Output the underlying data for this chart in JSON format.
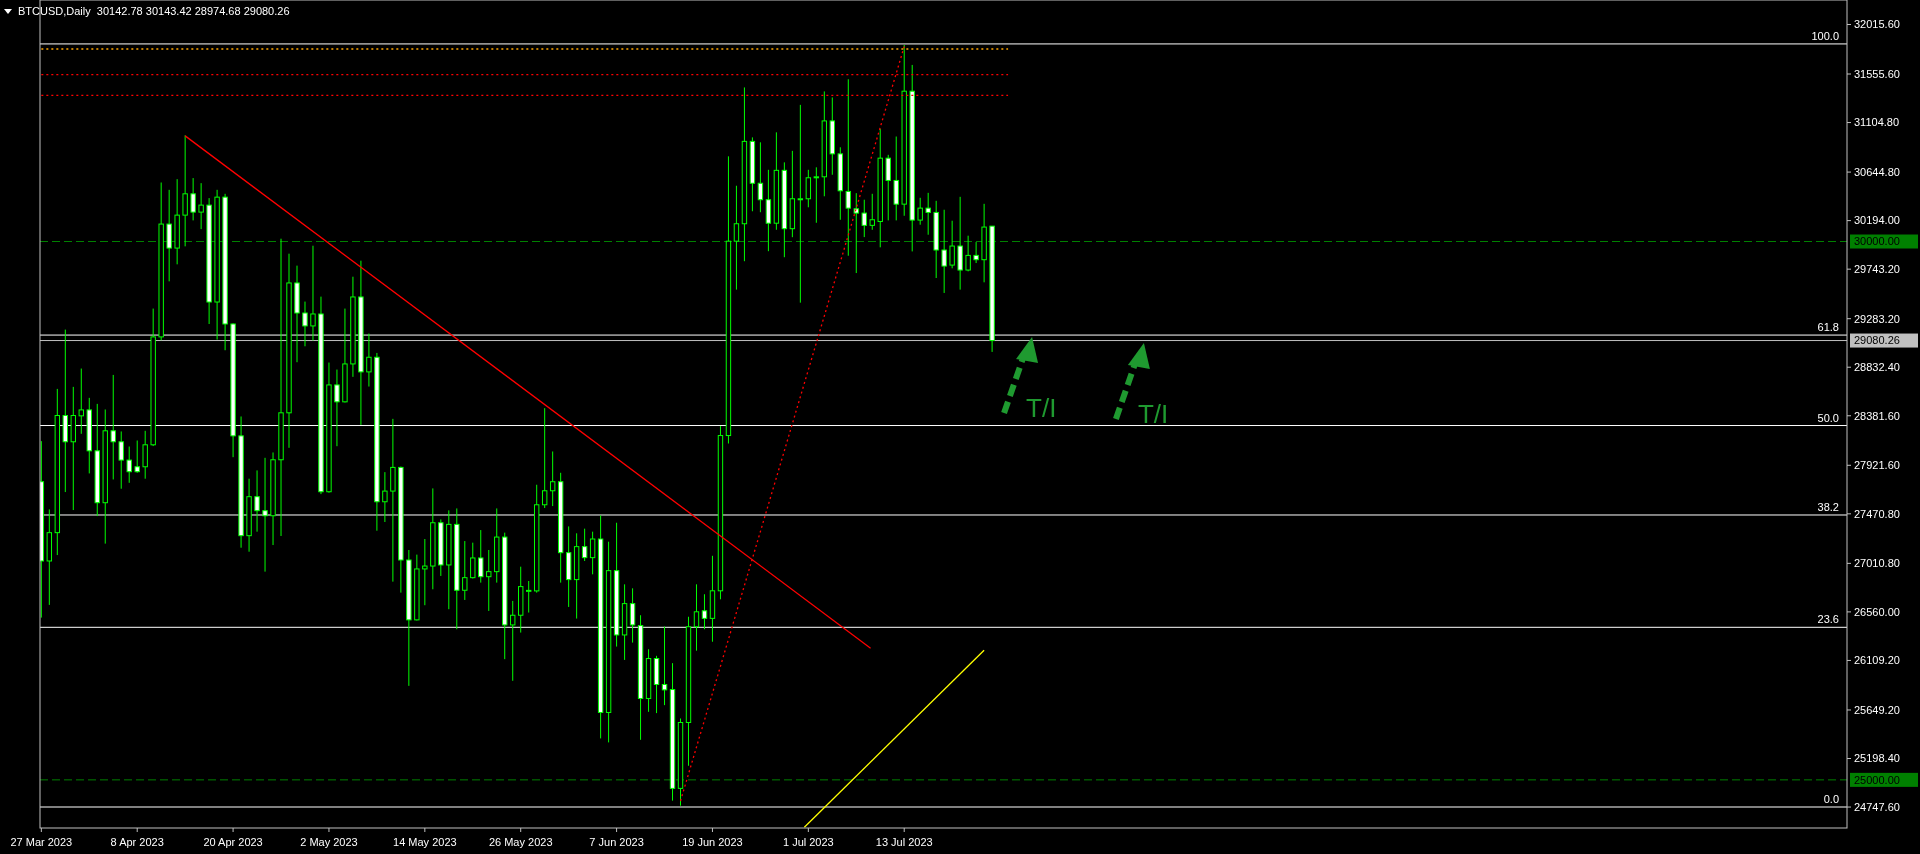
{
  "chart_data": {
    "type": "candlestick",
    "title": "BTCUSD,Daily  30142.78 30143.42 28974.68 29080.26",
    "xlim": [
      "2023-03-26T20:00",
      "2023-11-08"
    ],
    "xticks": [
      {
        "value": "2023-03-27",
        "label": "27 Mar 2023"
      },
      {
        "value": "2023-04-08",
        "label": "8 Apr 2023"
      },
      {
        "value": "2023-04-20",
        "label": "20 Apr 2023"
      },
      {
        "value": "2023-05-02",
        "label": "2 May 2023"
      },
      {
        "value": "2023-05-14",
        "label": "14 May 2023"
      },
      {
        "value": "2023-05-26",
        "label": "26 May 2023"
      },
      {
        "value": "2023-06-07",
        "label": "7 Jun 2023"
      },
      {
        "value": "2023-06-19",
        "label": "19 Jun 2023"
      },
      {
        "value": "2023-07-01",
        "label": "1 Jul 2023"
      },
      {
        "value": "2023-07-13",
        "label": "13 Jul 2023"
      }
    ],
    "ylim": [
      24553,
      32243
    ],
    "yticks": [
      {
        "value": 24747.6,
        "label": "24747.60"
      },
      {
        "value": 25198.4,
        "label": "25198.40"
      },
      {
        "value": 25649.2,
        "label": "25649.20"
      },
      {
        "value": 26109.2,
        "label": "26109.20"
      },
      {
        "value": 26560,
        "label": "26560.00"
      },
      {
        "value": 27010.8,
        "label": "27010.80"
      },
      {
        "value": 27470.8,
        "label": "27470.80"
      },
      {
        "value": 27921.6,
        "label": "27921.60"
      },
      {
        "value": 28381.6,
        "label": "28381.60"
      },
      {
        "value": 28832.4,
        "label": "28832.40"
      },
      {
        "value": 29283.2,
        "label": "29283.20"
      },
      {
        "value": 29743.2,
        "label": "29743.20"
      },
      {
        "value": 30194,
        "label": "30194.00"
      },
      {
        "value": 30644.8,
        "label": "30644.80"
      },
      {
        "value": 31104.8,
        "label": "31104.80"
      },
      {
        "value": 31555.6,
        "label": "31555.60"
      },
      {
        "value": 32015.6,
        "label": "32015.60"
      }
    ],
    "grid": false,
    "series": [
      {
        "color": "#00ff00",
        "x": [
          "2023-03-27",
          "2023-03-28",
          "2023-03-29",
          "2023-03-30",
          "2023-03-31",
          "2023-04-01",
          "2023-04-02",
          "2023-04-03",
          "2023-04-04",
          "2023-04-05",
          "2023-04-06",
          "2023-04-07",
          "2023-04-08",
          "2023-04-09",
          "2023-04-10",
          "2023-04-11",
          "2023-04-12",
          "2023-04-13",
          "2023-04-14",
          "2023-04-15",
          "2023-04-16",
          "2023-04-17",
          "2023-04-18",
          "2023-04-19",
          "2023-04-20",
          "2023-04-21",
          "2023-04-22",
          "2023-04-23",
          "2023-04-24",
          "2023-04-25",
          "2023-04-26",
          "2023-04-27",
          "2023-04-28",
          "2023-04-29",
          "2023-04-30",
          "2023-05-01",
          "2023-05-02",
          "2023-05-03",
          "2023-05-04",
          "2023-05-05",
          "2023-05-06",
          "2023-05-07",
          "2023-05-08",
          "2023-05-09",
          "2023-05-10",
          "2023-05-11",
          "2023-05-12",
          "2023-05-13",
          "2023-05-14",
          "2023-05-15",
          "2023-05-16",
          "2023-05-17",
          "2023-05-18",
          "2023-05-19",
          "2023-05-20",
          "2023-05-21",
          "2023-05-22",
          "2023-05-23",
          "2023-05-24",
          "2023-05-25",
          "2023-05-26",
          "2023-05-27",
          "2023-05-28",
          "2023-05-29",
          "2023-05-30",
          "2023-05-31",
          "2023-06-01",
          "2023-06-02",
          "2023-06-03",
          "2023-06-04",
          "2023-06-05",
          "2023-06-06",
          "2023-06-07",
          "2023-06-08",
          "2023-06-09",
          "2023-06-10",
          "2023-06-11",
          "2023-06-12",
          "2023-06-13",
          "2023-06-14",
          "2023-06-15",
          "2023-06-16",
          "2023-06-17",
          "2023-06-18",
          "2023-06-19",
          "2023-06-20",
          "2023-06-21",
          "2023-06-22",
          "2023-06-23",
          "2023-06-24",
          "2023-06-25",
          "2023-06-26",
          "2023-06-27",
          "2023-06-28",
          "2023-06-29",
          "2023-06-30",
          "2023-07-01",
          "2023-07-02",
          "2023-07-03",
          "2023-07-04",
          "2023-07-05",
          "2023-07-06",
          "2023-07-07",
          "2023-07-08",
          "2023-07-09",
          "2023-07-10",
          "2023-07-11",
          "2023-07-12",
          "2023-07-13",
          "2023-07-14",
          "2023-07-15",
          "2023-07-16",
          "2023-07-17",
          "2023-07-18",
          "2023-07-19",
          "2023-07-20",
          "2023-07-21",
          "2023-07-22",
          "2023-07-23",
          "2023-07-24"
        ],
        "ohlc": [
          [
            27769,
            28146,
            26507,
            27033
          ],
          [
            27033,
            27512,
            26625,
            27296
          ],
          [
            27296,
            28631,
            27088,
            28384
          ],
          [
            28384,
            29182,
            27673,
            28140
          ],
          [
            28140,
            28650,
            27506,
            28384
          ],
          [
            28381,
            28820,
            28214,
            28436
          ],
          [
            28436,
            28548,
            27846,
            28056
          ],
          [
            28056,
            28492,
            27450,
            27574
          ],
          [
            27574,
            28440,
            27194,
            28242
          ],
          [
            28242,
            28761,
            27790,
            28140
          ],
          [
            28140,
            28236,
            27704,
            27970
          ],
          [
            27970,
            28096,
            27759,
            27862
          ],
          [
            27908,
            28152,
            27852,
            27862
          ],
          [
            27908,
            28242,
            27797,
            28112
          ],
          [
            28112,
            29377,
            28100,
            29114
          ],
          [
            29114,
            30548,
            29083,
            30162
          ],
          [
            30162,
            30480,
            29630,
            29939
          ],
          [
            29939,
            30579,
            29788,
            30245
          ],
          [
            30245,
            30987,
            29955,
            30443
          ],
          [
            30443,
            30589,
            30196,
            30273
          ],
          [
            30273,
            30542,
            30115,
            30338
          ],
          [
            30338,
            30403,
            29234,
            29438
          ],
          [
            29438,
            30480,
            29089,
            30412
          ],
          [
            30412,
            30443,
            28990,
            29234
          ],
          [
            29234,
            29240,
            27997,
            28195
          ],
          [
            28195,
            28375,
            27156,
            27268
          ],
          [
            27268,
            27797,
            27119,
            27630
          ],
          [
            27630,
            27874,
            27305,
            27500
          ],
          [
            27500,
            27991,
            26934,
            27453
          ],
          [
            27453,
            28041,
            27181,
            27973
          ],
          [
            27973,
            30026,
            27265,
            28409
          ],
          [
            28409,
            29887,
            28084,
            29615
          ],
          [
            29615,
            29776,
            28879,
            29336
          ],
          [
            29336,
            29442,
            29027,
            29216
          ],
          [
            29216,
            29961,
            29080,
            29327
          ],
          [
            29327,
            29488,
            27654,
            27676
          ],
          [
            27676,
            28876,
            27667,
            28668
          ],
          [
            28668,
            28811,
            28099,
            28511
          ],
          [
            28511,
            29377,
            28505,
            28863
          ],
          [
            28863,
            29673,
            28743,
            29485
          ],
          [
            29485,
            29822,
            28297,
            28789
          ],
          [
            28789,
            29145,
            28653,
            28925
          ],
          [
            28925,
            28965,
            27314,
            27583
          ],
          [
            27583,
            27858,
            27395,
            27682
          ],
          [
            27682,
            28353,
            26841,
            27902
          ],
          [
            27902,
            27910,
            26739,
            27042
          ],
          [
            27042,
            27135,
            25873,
            26486
          ],
          [
            26486,
            27092,
            26480,
            26959
          ],
          [
            26959,
            27237,
            26622,
            26986
          ],
          [
            26986,
            27707,
            26770,
            27388
          ],
          [
            27388,
            27419,
            26894,
            26996
          ],
          [
            26996,
            27503,
            26585,
            27373
          ],
          [
            27373,
            27521,
            26399,
            26761
          ],
          [
            26761,
            27218,
            26671,
            26878
          ],
          [
            26878,
            27203,
            26870,
            27061
          ],
          [
            27061,
            27320,
            26832,
            26887
          ],
          [
            26887,
            27135,
            26569,
            26934
          ],
          [
            26934,
            27521,
            26832,
            27255
          ],
          [
            27255,
            27296,
            26121,
            26439
          ],
          [
            26439,
            26662,
            25920,
            26529
          ],
          [
            26529,
            26980,
            26368,
            26795
          ],
          [
            26755,
            26847,
            26554,
            26760
          ],
          [
            26755,
            27741,
            26739,
            27555
          ],
          [
            27555,
            28452,
            27525,
            27685
          ],
          [
            27685,
            28050,
            27543,
            27769
          ],
          [
            27769,
            27852,
            26832,
            27110
          ],
          [
            27110,
            27354,
            26606,
            26860
          ],
          [
            26860,
            27290,
            26498,
            27166
          ],
          [
            27166,
            27333,
            27033,
            27064
          ],
          [
            27064,
            27305,
            26909,
            27237
          ],
          [
            27237,
            27456,
            25385,
            25626
          ],
          [
            25626,
            27212,
            25348,
            26943
          ],
          [
            26943,
            27388,
            26238,
            26346
          ],
          [
            26346,
            26816,
            26114,
            26637
          ],
          [
            26637,
            26779,
            26275,
            26439
          ],
          [
            26433,
            26529,
            25372,
            25756
          ],
          [
            25756,
            26213,
            25632,
            26127
          ],
          [
            26127,
            26152,
            25620,
            25886
          ],
          [
            25886,
            26424,
            25694,
            25836
          ],
          [
            25839,
            26084,
            24807,
            24921
          ],
          [
            24921,
            25570,
            24760,
            25533
          ],
          [
            25533,
            26515,
            25131,
            26422
          ],
          [
            26422,
            26816,
            26200,
            26561
          ],
          [
            26570,
            26724,
            26399,
            26500
          ],
          [
            26500,
            27081,
            26283,
            26756
          ],
          [
            26756,
            28287,
            26677,
            28198
          ],
          [
            28198,
            30791,
            28124,
            30003
          ],
          [
            30003,
            30518,
            29553,
            30165
          ],
          [
            30165,
            31431,
            29817,
            30930
          ],
          [
            30930,
            30967,
            30281,
            30541
          ],
          [
            30541,
            30921,
            30272,
            30388
          ],
          [
            30388,
            30666,
            29910,
            30170
          ],
          [
            30170,
            31014,
            30109,
            30661
          ],
          [
            30661,
            30735,
            29854,
            30119
          ],
          [
            30119,
            30842,
            30040,
            30397
          ],
          [
            30397,
            31269,
            29432,
            30397
          ],
          [
            30397,
            30666,
            30318,
            30592
          ],
          [
            30592,
            30689,
            30174,
            30601
          ],
          [
            30601,
            31394,
            30420,
            31120
          ],
          [
            31120,
            31338,
            30620,
            30814
          ],
          [
            30814,
            30875,
            30202,
            30471
          ],
          [
            30465,
            31507,
            29868,
            30310
          ],
          [
            30304,
            30449,
            29707,
            30264
          ],
          [
            30264,
            30388,
            30041,
            30150
          ],
          [
            30150,
            30443,
            30109,
            30202
          ],
          [
            30186,
            31046,
            29946,
            30774
          ],
          [
            30774,
            30805,
            30196,
            30567
          ],
          [
            30567,
            30975,
            30196,
            30347
          ],
          [
            30347,
            31825,
            30239,
            31396
          ],
          [
            31396,
            31640,
            29908,
            30199
          ],
          [
            30199,
            30406,
            30156,
            30310
          ],
          [
            30310,
            30452,
            30063,
            30270
          ],
          [
            30270,
            30378,
            29661,
            29921
          ],
          [
            29921,
            30295,
            29522,
            29772
          ],
          [
            29781,
            30193,
            29751,
            29958
          ],
          [
            29958,
            30415,
            29553,
            29735
          ],
          [
            29735,
            30054,
            29723,
            29871
          ],
          [
            29871,
            29995,
            29800,
            29831
          ],
          [
            29831,
            30350,
            29621,
            30134
          ],
          [
            30142.78,
            30143.42,
            28974.68,
            29080.26
          ]
        ]
      },
      {
        "type": "line",
        "color": "#ff0000",
        "line_style": "solid",
        "x": [
          "2023-04-14",
          "2023-07-08T19:00"
        ],
        "values": [
          30981,
          26223
        ]
      },
      {
        "type": "line",
        "color": "#ff0000",
        "line_style": "dotted",
        "x": [
          "2023-06-15",
          "2023-07-13"
        ],
        "values": [
          24804,
          31811
        ]
      },
      {
        "type": "line",
        "color": "#ffff00",
        "line_style": "solid",
        "x": [
          "2023-06-30T12:00",
          "2023-07-23"
        ],
        "values": [
          24560,
          26204
        ]
      },
      {
        "type": "line",
        "color": "#ffa500",
        "line_style": "dotted",
        "x": [
          "2023-03-27",
          "2023-07-26"
        ],
        "values": [
          31788,
          31788
        ]
      },
      {
        "type": "line",
        "color": "#ff0000",
        "line_style": "dotted",
        "x": [
          "2023-03-27",
          "2023-07-26"
        ],
        "values": [
          31550,
          31550
        ]
      },
      {
        "type": "line",
        "color": "#ff0000",
        "line_style": "dotted",
        "x": [
          "2023-03-27",
          "2023-07-26"
        ],
        "values": [
          31357,
          31357
        ]
      }
    ],
    "ref_lines": [
      {
        "axis": "y",
        "value": 31835,
        "color": "#ffffff"
      },
      {
        "axis": "y",
        "value": 29131,
        "color": "#ffffff"
      },
      {
        "axis": "y",
        "value": 28291,
        "color": "#ffffff"
      },
      {
        "axis": "y",
        "value": 27460,
        "color": "#ffffff"
      },
      {
        "axis": "y",
        "value": 26417,
        "color": "#ffffff"
      },
      {
        "axis": "y",
        "value": 24748,
        "color": "#ffffff"
      },
      {
        "axis": "y",
        "value": 30000,
        "label": "30000.00",
        "color": "#008000",
        "line_style": "dashed"
      },
      {
        "axis": "y",
        "value": 25000,
        "label": "25000.00",
        "color": "#008000",
        "line_style": "dashed"
      },
      {
        "axis": "y",
        "value": 29080.26,
        "label": "29080.26",
        "color": "#c0c0c0",
        "line_style": "solid"
      }
    ],
    "annotations": [
      {
        "text": "T/I",
        "x": "2023-07-29",
        "y": 29131
      },
      {
        "text": "T/I",
        "x": "2023-08-12",
        "y": 29131
      },
      {
        "text": "100.0",
        "x": "2023-11-07",
        "y": 31835
      },
      {
        "text": "61.8",
        "x": "2023-11-07",
        "y": 29131
      },
      {
        "text": "50.0",
        "x": "2023-11-07",
        "y": 28291
      },
      {
        "text": "38.2",
        "x": "2023-11-07",
        "y": 27460
      },
      {
        "text": "23.6",
        "x": "2023-11-07",
        "y": 26417
      },
      {
        "text": "0.0",
        "x": "2023-11-07",
        "y": 24748
      }
    ]
  }
}
